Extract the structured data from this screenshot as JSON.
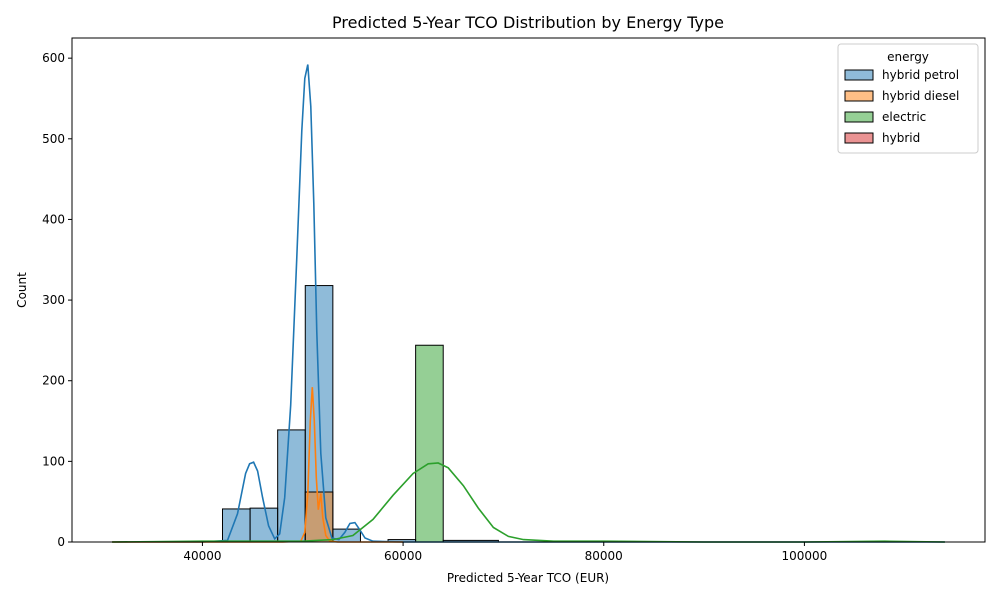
{
  "chart_data": {
    "type": "histogram",
    "title": "Predicted 5-Year TCO Distribution by Energy Type",
    "xlabel": "Predicted 5-Year TCO (EUR)",
    "ylabel": "Count",
    "xlim": [
      27000,
      118000
    ],
    "ylim": [
      0,
      625
    ],
    "xticks": [
      40000,
      60000,
      80000,
      100000
    ],
    "yticks": [
      0,
      100,
      200,
      300,
      400,
      500,
      600
    ],
    "grid": false,
    "legend": {
      "title": "energy",
      "position": "top-right"
    },
    "series": [
      {
        "name": "hybrid petrol",
        "color": "#1f77b4",
        "fill": "rgba(31,119,180,0.5)",
        "bins": [
          {
            "x0": 42000,
            "x1": 44750,
            "count": 41
          },
          {
            "x0": 44750,
            "x1": 47500,
            "count": 42
          },
          {
            "x0": 47500,
            "x1": 50250,
            "count": 139
          },
          {
            "x0": 50250,
            "x1": 53000,
            "count": 318
          },
          {
            "x0": 53000,
            "x1": 55750,
            "count": 16
          },
          {
            "x0": 58500,
            "x1": 61250,
            "count": 3
          },
          {
            "x0": 64000,
            "x1": 69500,
            "count": 2
          }
        ],
        "kde": [
          [
            31000,
            0
          ],
          [
            40000,
            0
          ],
          [
            42500,
            2
          ],
          [
            43500,
            35
          ],
          [
            44300,
            85
          ],
          [
            44700,
            97
          ],
          [
            45100,
            99
          ],
          [
            45500,
            88
          ],
          [
            46000,
            55
          ],
          [
            46600,
            20
          ],
          [
            47200,
            4
          ],
          [
            47700,
            10
          ],
          [
            48200,
            55
          ],
          [
            48800,
            170
          ],
          [
            49400,
            350
          ],
          [
            49900,
            510
          ],
          [
            50200,
            575
          ],
          [
            50500,
            592
          ],
          [
            50800,
            540
          ],
          [
            51100,
            420
          ],
          [
            51400,
            260
          ],
          [
            51800,
            110
          ],
          [
            52300,
            30
          ],
          [
            52900,
            5
          ],
          [
            53600,
            3
          ],
          [
            54200,
            12
          ],
          [
            54700,
            23
          ],
          [
            55200,
            24
          ],
          [
            55700,
            15
          ],
          [
            56200,
            5
          ],
          [
            57000,
            1
          ],
          [
            60000,
            0
          ],
          [
            80000,
            0
          ],
          [
            100000,
            0
          ],
          [
            114000,
            0
          ]
        ]
      },
      {
        "name": "hybrid diesel",
        "color": "#ff7f0e",
        "fill": "rgba(255,127,14,0.5)",
        "bins": [
          {
            "x0": 50250,
            "x1": 53000,
            "count": 62
          }
        ],
        "kde": [
          [
            31000,
            0
          ],
          [
            48000,
            0
          ],
          [
            49800,
            1
          ],
          [
            50200,
            12
          ],
          [
            50500,
            60
          ],
          [
            50750,
            150
          ],
          [
            50950,
            192
          ],
          [
            51150,
            150
          ],
          [
            51350,
            80
          ],
          [
            51550,
            40
          ],
          [
            51800,
            60
          ],
          [
            52000,
            30
          ],
          [
            52300,
            8
          ],
          [
            52700,
            1
          ],
          [
            53500,
            0
          ],
          [
            60000,
            0
          ]
        ]
      },
      {
        "name": "electric",
        "color": "#2ca02c",
        "fill": "rgba(44,160,44,0.5)",
        "bins": [
          {
            "x0": 61250,
            "x1": 64000,
            "count": 244
          }
        ],
        "kde": [
          [
            31000,
            0
          ],
          [
            40000,
            1
          ],
          [
            50000,
            1
          ],
          [
            53000,
            3
          ],
          [
            55000,
            8
          ],
          [
            57000,
            28
          ],
          [
            59000,
            58
          ],
          [
            61000,
            85
          ],
          [
            62500,
            97
          ],
          [
            63500,
            98
          ],
          [
            64500,
            92
          ],
          [
            66000,
            70
          ],
          [
            67500,
            42
          ],
          [
            69000,
            18
          ],
          [
            70500,
            7
          ],
          [
            72000,
            3
          ],
          [
            75000,
            1
          ],
          [
            80000,
            1
          ],
          [
            90000,
            0
          ],
          [
            100000,
            0
          ],
          [
            108000,
            1
          ],
          [
            114000,
            0
          ]
        ]
      },
      {
        "name": "hybrid",
        "color": "#d62728",
        "fill": "rgba(214,39,40,0.5)",
        "bins": [],
        "kde": []
      }
    ]
  }
}
